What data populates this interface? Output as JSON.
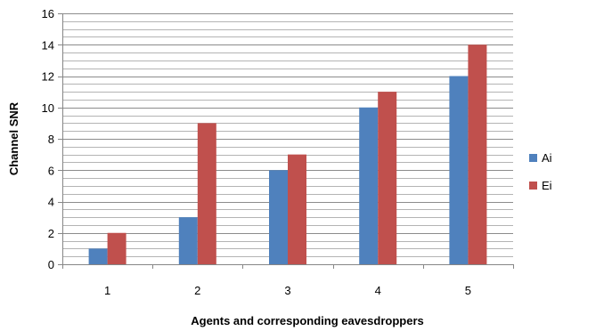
{
  "chart_data": {
    "type": "bar",
    "title": "",
    "xlabel": "Agents and corresponding eavesdroppers",
    "ylabel": "Channel SNR",
    "categories": [
      "1",
      "2",
      "3",
      "4",
      "5"
    ],
    "series": [
      {
        "name": "Ai",
        "values": [
          1,
          3,
          6,
          10,
          12
        ],
        "color": "#4f81bd"
      },
      {
        "name": "Ei",
        "values": [
          2,
          9,
          7,
          11,
          14
        ],
        "color": "#c0504d"
      }
    ],
    "ylim": [
      0,
      16
    ],
    "y_major_ticks": [
      0,
      2,
      4,
      6,
      8,
      10,
      12,
      14,
      16
    ],
    "y_minor_step": 0.5,
    "grid": true,
    "legend_position": "right"
  }
}
